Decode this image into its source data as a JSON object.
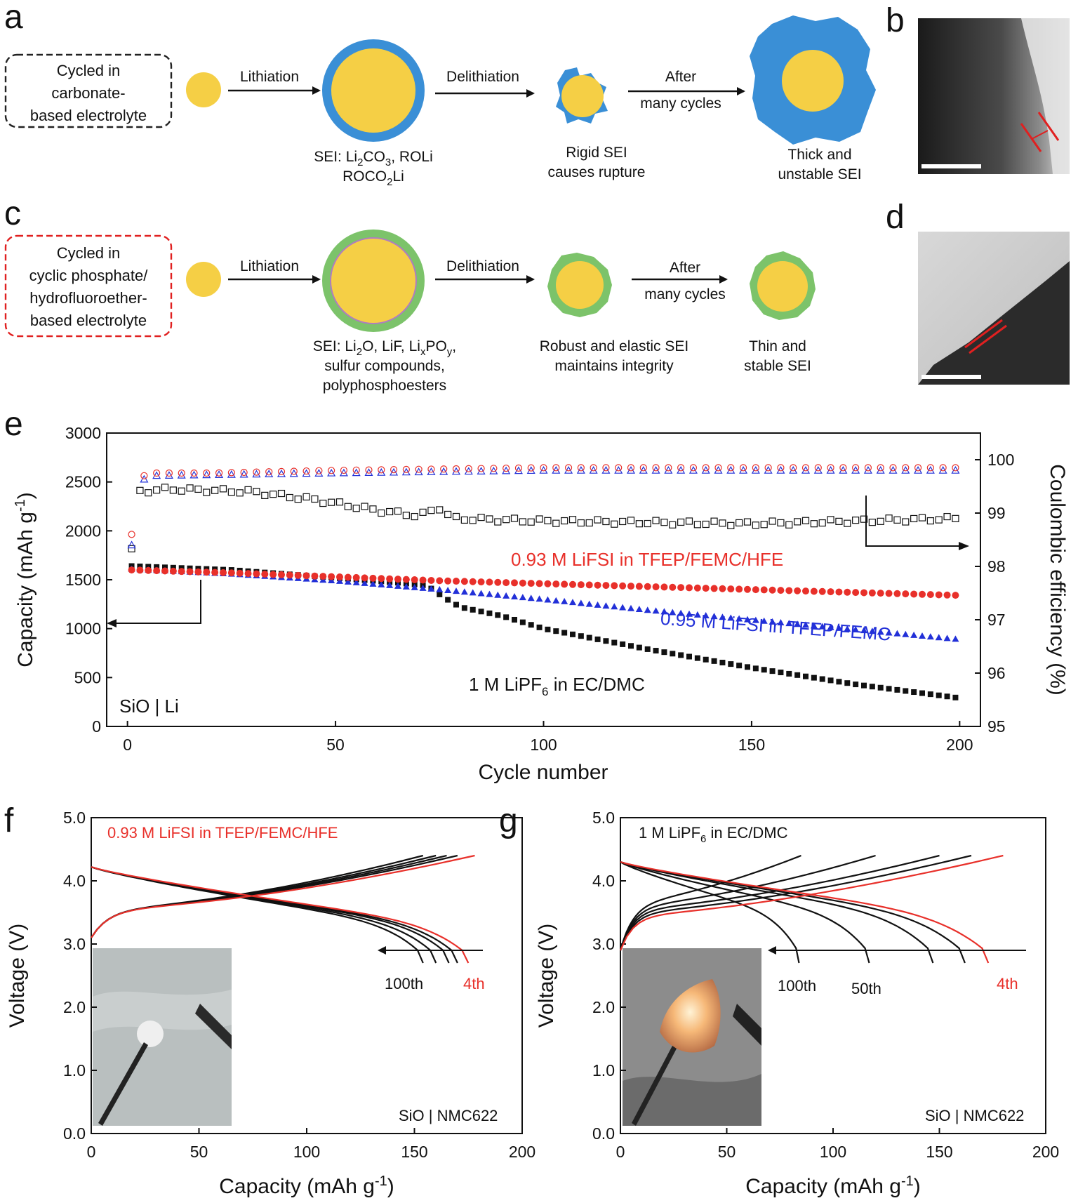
{
  "figure": {
    "panel_labels": [
      "a",
      "b",
      "c",
      "d",
      "e",
      "f",
      "g"
    ],
    "schematic_a": {
      "box": [
        "Cycled in",
        "carbonate-",
        "based electrolyte"
      ],
      "arrows": [
        "Lithiation",
        "Delithiation",
        "After",
        "many cycles"
      ],
      "captions": {
        "sei": [
          "SEI: Li",
          "2",
          "CO",
          "3",
          ", ROLi",
          "ROCO",
          "2",
          "Li"
        ],
        "rupture": [
          "Rigid SEI",
          "causes rupture"
        ],
        "final": [
          "Thick and",
          "unstable SEI"
        ]
      },
      "colors": {
        "core": "#f5cf45",
        "shell": "#3a8fd6",
        "box_border": "#222222"
      }
    },
    "schematic_c": {
      "box": [
        "Cycled in",
        "cyclic phosphate/",
        "hydrofluoroether-",
        "based electrolyte"
      ],
      "arrows": [
        "Lithiation",
        "Delithiation",
        "After",
        "many cycles"
      ],
      "captions": {
        "sei_line1": [
          "SEI: Li",
          "2",
          "O, LiF, Li",
          "x",
          "PO",
          "y",
          ","
        ],
        "sei_line2": "sulfur compounds,",
        "sei_line3": "polyphosphoesters",
        "robust": [
          "Robust and elastic SEI",
          "maintains integrity"
        ],
        "final": [
          "Thin and",
          "stable SEI"
        ]
      },
      "colors": {
        "core": "#f5cf45",
        "shell": "#7cc36a",
        "box_border": "#e02020"
      }
    }
  },
  "chart_data": [
    {
      "panel": "e",
      "type": "scatter",
      "x_label": "Cycle number",
      "y_label": "Capacity (mAh g",
      "y_label_sup": "-1",
      "y_label_end": ")",
      "y2_label": "Coulombic efficiency (%)",
      "xlim": [
        -5,
        205
      ],
      "ylim": [
        0,
        3000
      ],
      "y2lim": [
        95,
        100.5
      ],
      "x_ticks": [
        0,
        50,
        100,
        150,
        200
      ],
      "y_ticks": [
        0,
        500,
        1000,
        1500,
        2000,
        2500,
        3000
      ],
      "y2_ticks": [
        95,
        96,
        97,
        98,
        99,
        100
      ],
      "series": [
        {
          "name": "0.93 M LiFSI in TFEP/FEMC/HFE",
          "color": "#e8302a",
          "capacity_points": [
            [
              1,
              1600
            ],
            [
              25,
              1570
            ],
            [
              50,
              1530
            ],
            [
              75,
              1490
            ],
            [
              100,
              1460
            ],
            [
              125,
              1430
            ],
            [
              150,
              1400
            ],
            [
              175,
              1370
            ],
            [
              200,
              1340
            ]
          ],
          "ce_points": [
            [
              1,
              98.6
            ],
            [
              2,
              99.6
            ],
            [
              5,
              99.75
            ],
            [
              20,
              99.75
            ],
            [
              50,
              99.8
            ],
            [
              100,
              99.85
            ],
            [
              150,
              99.85
            ],
            [
              200,
              99.85
            ]
          ]
        },
        {
          "name": "0.95 M LiFSI in TFEP/FEMC",
          "color": "#2230d8",
          "capacity_points": [
            [
              1,
              1610
            ],
            [
              25,
              1560
            ],
            [
              50,
              1490
            ],
            [
              75,
              1400
            ],
            [
              100,
              1300
            ],
            [
              125,
              1190
            ],
            [
              150,
              1090
            ],
            [
              175,
              990
            ],
            [
              200,
              890
            ]
          ],
          "ce_points": [
            [
              1,
              98.4
            ],
            [
              2,
              99.5
            ],
            [
              5,
              99.7
            ],
            [
              50,
              99.75
            ],
            [
              100,
              99.8
            ],
            [
              150,
              99.8
            ],
            [
              200,
              99.8
            ]
          ]
        },
        {
          "name": "1 M LiPF6 in EC/DMC",
          "color": "#111111",
          "capacity_points": [
            [
              1,
              1640
            ],
            [
              25,
              1600
            ],
            [
              50,
              1520
            ],
            [
              65,
              1470
            ],
            [
              72,
              1440
            ],
            [
              76,
              1320
            ],
            [
              80,
              1220
            ],
            [
              90,
              1130
            ],
            [
              100,
              1000
            ],
            [
              125,
              790
            ],
            [
              150,
              600
            ],
            [
              175,
              430
            ],
            [
              200,
              290
            ]
          ],
          "ce_points": [
            [
              1,
              98.3
            ],
            [
              2,
              99.4
            ],
            [
              10,
              99.45
            ],
            [
              30,
              99.4
            ],
            [
              45,
              99.25
            ],
            [
              60,
              99.05
            ],
            [
              70,
              98.95
            ],
            [
              75,
              99.1
            ],
            [
              78,
              98.9
            ],
            [
              100,
              98.85
            ],
            [
              150,
              98.8
            ],
            [
              175,
              98.85
            ],
            [
              200,
              98.9
            ]
          ]
        }
      ],
      "annotations": {
        "lifsi_hfe": "0.93 M LiFSI in TFEP/FEMC/HFE",
        "lifsi_femc": "0.95 M LiFSI in TFEP/FEMC",
        "lipf6": [
          "1 M LiPF",
          "6",
          " in EC/DMC"
        ],
        "cell": "SiO | Li"
      }
    },
    {
      "panel": "f",
      "type": "line",
      "x_label": "Capacity (mAh g",
      "x_label_sup": "-1",
      "x_label_end": ")",
      "y_label": "Voltage (V)",
      "xlim": [
        0,
        200
      ],
      "ylim": [
        0,
        5
      ],
      "x_ticks": [
        0,
        50,
        100,
        150,
        200
      ],
      "y_ticks": [
        "0.0",
        "1.0",
        "2.0",
        "3.0",
        "4.0",
        "5.0"
      ],
      "title": "0.93 M LiFSI in TFEP/FEMC/HFE",
      "cell": "SiO | NMC622",
      "cycle_labels": [
        "100th",
        "4th"
      ],
      "curves": [
        {
          "cycle": "4th",
          "color": "#e8302a",
          "charge_end": 178,
          "discharge_end": 175
        },
        {
          "cycle": "other",
          "color": "#111111",
          "charge_end": 170,
          "discharge_end": 170
        },
        {
          "cycle": "other",
          "color": "#111111",
          "charge_end": 165,
          "discharge_end": 166
        },
        {
          "cycle": "other",
          "color": "#111111",
          "charge_end": 160,
          "discharge_end": 160
        },
        {
          "cycle": "100th",
          "color": "#111111",
          "charge_end": 154,
          "discharge_end": 154
        }
      ]
    },
    {
      "panel": "g",
      "type": "line",
      "x_label": "Capacity (mAh g",
      "x_label_sup": "-1",
      "x_label_end": ")",
      "y_label": "Voltage (V)",
      "xlim": [
        0,
        200
      ],
      "ylim": [
        0,
        5
      ],
      "x_ticks": [
        0,
        50,
        100,
        150,
        200
      ],
      "y_ticks": [
        "0.0",
        "1.0",
        "2.0",
        "3.0",
        "4.0",
        "5.0"
      ],
      "title": [
        "1 M LiPF",
        "6",
        " in EC/DMC"
      ],
      "cell": "SiO | NMC622",
      "cycle_labels": [
        "100th",
        "50th",
        "4th"
      ],
      "curves": [
        {
          "cycle": "4th",
          "color": "#e8302a",
          "charge_end": 180,
          "discharge_end": 173
        },
        {
          "cycle": "other",
          "color": "#111111",
          "charge_end": 165,
          "discharge_end": 162
        },
        {
          "cycle": "other",
          "color": "#111111",
          "charge_end": 150,
          "discharge_end": 147
        },
        {
          "cycle": "50th",
          "color": "#111111",
          "charge_end": 120,
          "discharge_end": 117
        },
        {
          "cycle": "100th",
          "color": "#111111",
          "charge_end": 85,
          "discharge_end": 84
        }
      ]
    }
  ]
}
